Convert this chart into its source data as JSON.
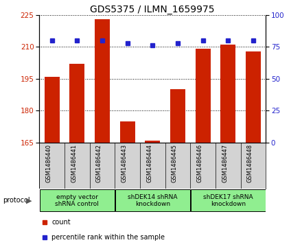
{
  "title": "GDS5375 / ILMN_1659975",
  "samples": [
    "GSM1486440",
    "GSM1486441",
    "GSM1486442",
    "GSM1486443",
    "GSM1486444",
    "GSM1486445",
    "GSM1486446",
    "GSM1486447",
    "GSM1486448"
  ],
  "counts": [
    196,
    202,
    223,
    175,
    166,
    190,
    209,
    211,
    208
  ],
  "percentiles": [
    80,
    80,
    80,
    78,
    76,
    78,
    80,
    80,
    80
  ],
  "groups": [
    {
      "label": "empty vector\nshRNA control",
      "start": 0,
      "end": 3,
      "color": "#90EE90"
    },
    {
      "label": "shDEK14 shRNA\nknockdown",
      "start": 3,
      "end": 6,
      "color": "#90EE90"
    },
    {
      "label": "shDEK17 shRNA\nknockdown",
      "start": 6,
      "end": 9,
      "color": "#90EE90"
    }
  ],
  "ylim_left": [
    165,
    225
  ],
  "ylim_right": [
    0,
    100
  ],
  "yticks_left": [
    165,
    180,
    195,
    210,
    225
  ],
  "yticks_right": [
    0,
    25,
    50,
    75,
    100
  ],
  "bar_color": "#cc2200",
  "dot_color": "#2222cc",
  "bar_width": 0.6,
  "background_color": "#ffffff",
  "plot_bg_color": "#ffffff",
  "title_fontsize": 10,
  "tick_fontsize": 7.5,
  "label_fontsize": 7
}
